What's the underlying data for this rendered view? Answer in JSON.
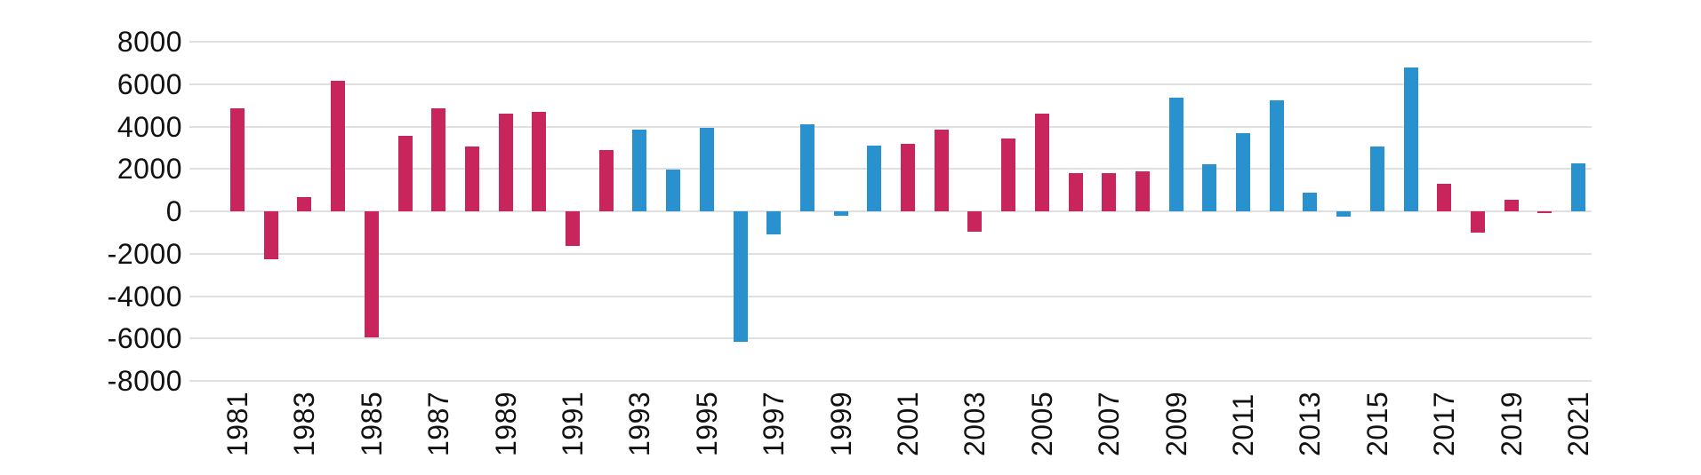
{
  "chart_data": {
    "type": "bar",
    "title": "",
    "xlabel": "",
    "ylabel": "",
    "ylim": [
      -8000,
      8000
    ],
    "ytick_step": 2000,
    "grid": true,
    "legend": "none",
    "background_color": "#ffffff",
    "gridline_color": "#e0e0e0",
    "text_color": "#111111",
    "party_colors": {
      "red": "#c8255c",
      "blue": "#2991ce"
    },
    "y_tick_labels": [
      "8000",
      "6000",
      "4000",
      "2000",
      "0",
      "-2000",
      "-4000",
      "-6000",
      "-8000"
    ],
    "x_tick_labels": [
      "1981",
      "1983",
      "1985",
      "1987",
      "1989",
      "1991",
      "1993",
      "1995",
      "1997",
      "1999",
      "2001",
      "2003",
      "2005",
      "2007",
      "2009",
      "2011",
      "2013",
      "2015",
      "2017",
      "2019",
      "2021"
    ],
    "bars": [
      {
        "year": "1981",
        "value": 4850,
        "color": "red"
      },
      {
        "year": "1982",
        "value": -2280,
        "color": "red"
      },
      {
        "year": "1983",
        "value": 675,
        "color": "red"
      },
      {
        "year": "1984",
        "value": 6150,
        "color": "red"
      },
      {
        "year": "1985",
        "value": -5950,
        "color": "red"
      },
      {
        "year": "1986",
        "value": 3550,
        "color": "red"
      },
      {
        "year": "1987",
        "value": 4850,
        "color": "red"
      },
      {
        "year": "1988",
        "value": 3050,
        "color": "red"
      },
      {
        "year": "1989",
        "value": 4600,
        "color": "red"
      },
      {
        "year": "1990",
        "value": 4700,
        "color": "red"
      },
      {
        "year": "1991",
        "value": -1620,
        "color": "red"
      },
      {
        "year": "1992",
        "value": 2900,
        "color": "red"
      },
      {
        "year": "1993",
        "value": 3850,
        "color": "blue"
      },
      {
        "year": "1994",
        "value": 1950,
        "color": "blue"
      },
      {
        "year": "1995",
        "value": 3950,
        "color": "blue"
      },
      {
        "year": "1996",
        "value": -6150,
        "color": "blue"
      },
      {
        "year": "1997",
        "value": -1100,
        "color": "blue"
      },
      {
        "year": "1998",
        "value": 4100,
        "color": "blue"
      },
      {
        "year": "1999",
        "value": -200,
        "color": "blue"
      },
      {
        "year": "2000",
        "value": 3100,
        "color": "blue"
      },
      {
        "year": "2001",
        "value": 3200,
        "color": "red"
      },
      {
        "year": "2002",
        "value": 3850,
        "color": "red"
      },
      {
        "year": "2003",
        "value": -950,
        "color": "red"
      },
      {
        "year": "2004",
        "value": 3450,
        "color": "red"
      },
      {
        "year": "2005",
        "value": 4600,
        "color": "red"
      },
      {
        "year": "2006",
        "value": 1800,
        "color": "red"
      },
      {
        "year": "2007",
        "value": 1800,
        "color": "red"
      },
      {
        "year": "2008",
        "value": 1900,
        "color": "red"
      },
      {
        "year": "2009",
        "value": 5350,
        "color": "blue"
      },
      {
        "year": "2010",
        "value": 2200,
        "color": "blue"
      },
      {
        "year": "2011",
        "value": 3700,
        "color": "blue"
      },
      {
        "year": "2012",
        "value": 5250,
        "color": "blue"
      },
      {
        "year": "2013",
        "value": 900,
        "color": "blue"
      },
      {
        "year": "2014",
        "value": -250,
        "color": "blue"
      },
      {
        "year": "2015",
        "value": 3050,
        "color": "blue"
      },
      {
        "year": "2016",
        "value": 6800,
        "color": "blue"
      },
      {
        "year": "2017",
        "value": 1300,
        "color": "red"
      },
      {
        "year": "2018",
        "value": -1000,
        "color": "red"
      },
      {
        "year": "2019",
        "value": 550,
        "color": "red"
      },
      {
        "year": "2020",
        "value": -100,
        "color": "red"
      },
      {
        "year": "2021",
        "value": 2250,
        "color": "blue"
      }
    ]
  }
}
